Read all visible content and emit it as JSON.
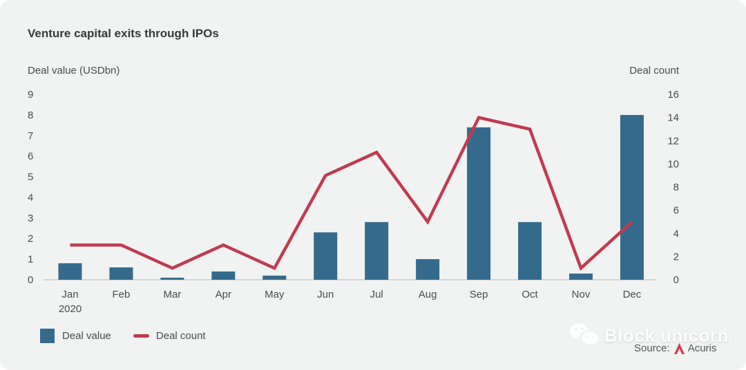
{
  "title": "Venture capital exits through IPOs",
  "chart_data": {
    "type": "combo-bar-line",
    "title": "Venture capital exits through IPOs",
    "categories": [
      "Jan",
      "Feb",
      "Mar",
      "Apr",
      "May",
      "Jun",
      "Jul",
      "Aug",
      "Sep",
      "Oct",
      "Nov",
      "Dec"
    ],
    "year_label": {
      "category_index": 0,
      "text": "2020"
    },
    "series": [
      {
        "name": "Deal value",
        "kind": "bar",
        "axis": "left",
        "color": "#346b8c",
        "values": [
          0.8,
          0.6,
          0.1,
          0.4,
          0.2,
          2.3,
          2.8,
          1.0,
          7.4,
          2.8,
          0.3,
          8.0
        ]
      },
      {
        "name": "Deal count",
        "kind": "line",
        "axis": "right",
        "color": "#c23a4f",
        "values": [
          3,
          3,
          1,
          3,
          1,
          9,
          11,
          5,
          14,
          13,
          1,
          5
        ]
      }
    ],
    "axes": {
      "left": {
        "label": "Deal value (USDbn)",
        "min": 0,
        "max": 9,
        "step": 1
      },
      "right": {
        "label": "Deal count",
        "min": 0,
        "max": 16,
        "step": 2
      }
    },
    "grid": false,
    "legend_position": "bottom-left"
  },
  "legend": {
    "items": [
      {
        "label": "Deal value",
        "swatch": "square",
        "color": "#346b8c"
      },
      {
        "label": "Deal count",
        "swatch": "dash",
        "color": "#c23a4f"
      }
    ]
  },
  "watermark": {
    "icon": "wechat-icon",
    "text": "Block unicorn"
  },
  "source": {
    "prefix": "Source:",
    "logo": "acuris-logo",
    "name": "Acuris"
  },
  "colors": {
    "background": "#f1f2f2",
    "bar": "#346b8c",
    "line": "#c23a4f",
    "axis_line": "#c9c9c9",
    "text": "#4b4b4b",
    "title": "#383838",
    "source_logo": "#d5374e"
  }
}
